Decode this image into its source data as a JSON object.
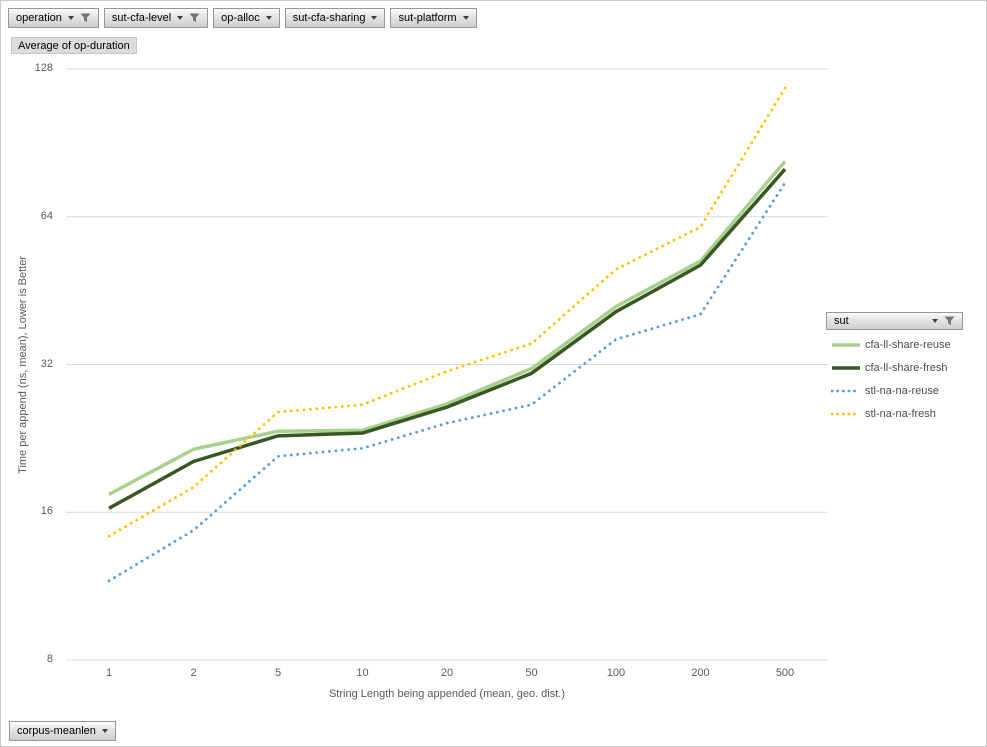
{
  "pivot_filters": {
    "top_buttons": [
      {
        "label": "operation",
        "filtered": true
      },
      {
        "label": "sut-cfa-level",
        "filtered": true
      },
      {
        "label": "op-alloc",
        "filtered": false
      },
      {
        "label": "sut-cfa-sharing",
        "filtered": false
      },
      {
        "label": "sut-platform",
        "filtered": false
      }
    ],
    "value_field_button": "Average of op-duration",
    "legend_field_button": {
      "label": "sut",
      "filtered": true
    },
    "axis_field_button": {
      "label": "corpus-meanlen",
      "filtered": false
    }
  },
  "chart_data": {
    "type": "line",
    "title": "Average of op-duration",
    "xlabel": "String Length being appended (mean, geo. dist.)",
    "ylabel": "Time per append (ns, mean), Lower is Better",
    "x_scale": "categorical",
    "y_scale": "log2",
    "ylim": [
      8,
      128
    ],
    "y_ticks": [
      128,
      64,
      32,
      16,
      8
    ],
    "grid": true,
    "legend_position": "right",
    "legend_title": "sut",
    "categories": [
      1,
      2,
      5,
      10,
      20,
      50,
      100,
      200,
      500
    ],
    "series": [
      {
        "name": "cfa-ll-share-reuse",
        "color": "#a9d18e",
        "line_style": "solid",
        "values": [
          17.4,
          21.5,
          23.4,
          23.5,
          26.6,
          31.4,
          42,
          52,
          83
        ]
      },
      {
        "name": "cfa-ll-share-fresh",
        "color": "#385723",
        "line_style": "solid",
        "values": [
          16.3,
          20.3,
          22.9,
          23.2,
          26.2,
          30.7,
          41,
          51,
          80
        ]
      },
      {
        "name": "stl-na-na-reuse",
        "color": "#5b9bd5",
        "line_style": "dotted",
        "values": [
          11.6,
          14.7,
          20.8,
          21.6,
          24.3,
          26.5,
          36,
          40.5,
          75
        ]
      },
      {
        "name": "stl-na-na-fresh",
        "color": "#ffc000",
        "line_style": "dotted",
        "values": [
          14.3,
          18.0,
          25.6,
          26.5,
          31.0,
          35.3,
          50,
          61,
          117
        ]
      }
    ]
  },
  "colors": {
    "gridline": "#d9d9d9",
    "axis_text": "#595959",
    "frame_border": "#c9c9c9"
  }
}
